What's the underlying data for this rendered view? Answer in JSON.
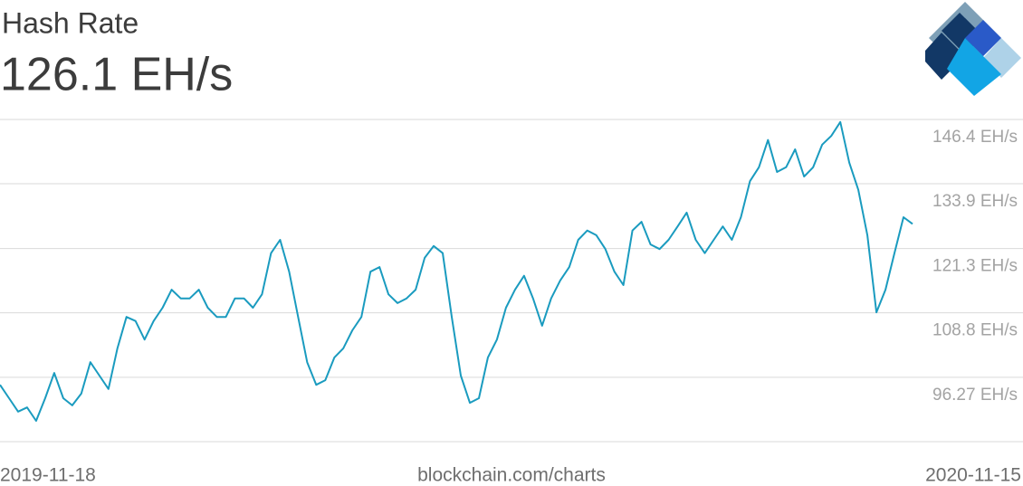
{
  "chart_data": {
    "type": "line",
    "title": "Hash Rate",
    "subtitle": "126.1 EH/s",
    "source": "blockchain.com/charts",
    "x_start": "2019-11-18",
    "x_end": "2020-11-15",
    "color": "#1a9bbf",
    "grid": true,
    "ylim": [
      83.75,
      146.4
    ],
    "yticks": [
      {
        "value": 96.27,
        "label": "96.27 EH/s"
      },
      {
        "value": 108.8,
        "label": "108.8 EH/s"
      },
      {
        "value": 121.3,
        "label": "121.3 EH/s"
      },
      {
        "value": 133.9,
        "label": "133.9 EH/s"
      },
      {
        "value": 146.4,
        "label": "146.4 EH/s"
      }
    ],
    "values": [
      94.8,
      92.2,
      89.6,
      90.4,
      87.8,
      92.2,
      97.1,
      92.2,
      90.8,
      93.1,
      99.2,
      96.6,
      94.0,
      101.9,
      108.0,
      107.2,
      103.6,
      107.2,
      109.8,
      113.3,
      111.6,
      111.6,
      113.3,
      109.8,
      108.0,
      108.0,
      111.6,
      111.6,
      109.8,
      112.4,
      120.4,
      123.0,
      116.8,
      108.0,
      99.2,
      94.8,
      95.7,
      100.1,
      101.9,
      105.4,
      108.0,
      116.8,
      117.7,
      112.4,
      110.7,
      111.6,
      113.3,
      119.5,
      121.8,
      120.4,
      108.0,
      96.6,
      91.3,
      92.2,
      100.1,
      103.6,
      109.8,
      113.3,
      116.0,
      111.6,
      106.3,
      111.6,
      115.1,
      117.7,
      123.0,
      124.8,
      123.9,
      121.2,
      116.8,
      114.2,
      124.8,
      126.5,
      122.1,
      121.2,
      123.0,
      125.6,
      128.3,
      123.0,
      120.4,
      123.0,
      125.6,
      123.0,
      127.4,
      134.4,
      137.1,
      142.4,
      136.2,
      137.1,
      140.6,
      135.3,
      137.1,
      141.5,
      143.2,
      145.9,
      138.0,
      132.7,
      123.9,
      108.9,
      113.3,
      120.4,
      127.4,
      126.1
    ]
  }
}
